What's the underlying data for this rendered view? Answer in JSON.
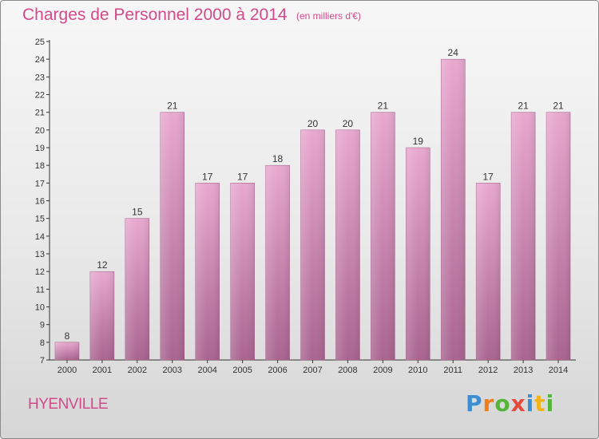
{
  "header": {
    "title": "Charges de Personnel 2000 à 2014",
    "subtitle": "(en milliers d'€)"
  },
  "commune": "HYENVILLE",
  "logo": {
    "text": "Proxiti",
    "letters": [
      {
        "ch": "P",
        "color": "#3a8ed6"
      },
      {
        "ch": "r",
        "color": "#f07d1a"
      },
      {
        "ch": "o",
        "color": "#55b53a"
      },
      {
        "ch": "x",
        "color": "#e64a3c"
      },
      {
        "ch": "i",
        "color": "#3a8ed6"
      },
      {
        "ch": "t",
        "color": "#f0b41a"
      },
      {
        "ch": "i",
        "color": "#55b53a"
      }
    ]
  },
  "chart_data": {
    "type": "bar",
    "title": "Charges de Personnel 2000 à 2014",
    "subtitle": "(en milliers d'€)",
    "categories": [
      "2000",
      "2001",
      "2002",
      "2003",
      "2004",
      "2005",
      "2006",
      "2007",
      "2008",
      "2009",
      "2010",
      "2011",
      "2012",
      "2013",
      "2014"
    ],
    "values": [
      8,
      12,
      15,
      21,
      17,
      17,
      18,
      20,
      20,
      21,
      19,
      24,
      17,
      21,
      21
    ],
    "ylim": [
      7,
      25
    ],
    "yticks": [
      7,
      8,
      9,
      10,
      11,
      12,
      13,
      14,
      15,
      16,
      17,
      18,
      19,
      20,
      21,
      22,
      23,
      24,
      25
    ],
    "grid": false,
    "bar_color": "#d98cb7"
  }
}
